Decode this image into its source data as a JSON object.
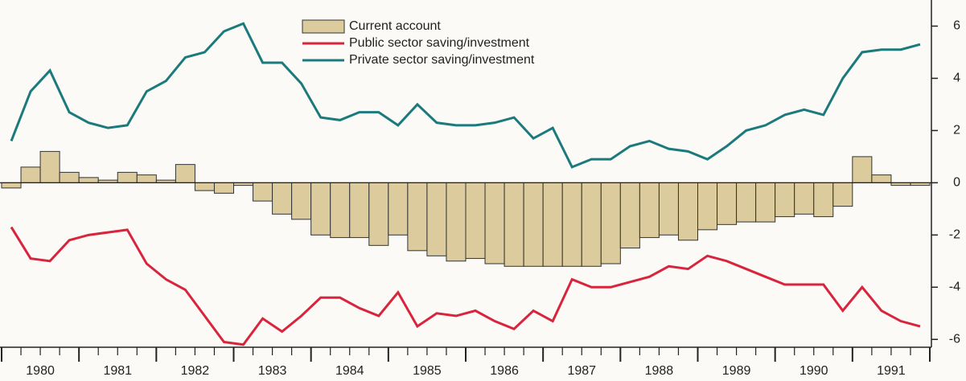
{
  "chart_data": {
    "type": "bar+line",
    "categories": [
      "1980",
      null,
      null,
      null,
      "1981",
      null,
      null,
      null,
      "1982",
      null,
      null,
      null,
      "1983",
      null,
      null,
      null,
      "1984",
      null,
      null,
      null,
      "1985",
      null,
      null,
      null,
      "1986",
      null,
      null,
      null,
      "1987",
      null,
      null,
      null,
      "1988",
      null,
      null,
      null,
      "1989",
      null,
      null,
      null,
      "1990",
      null,
      null,
      null,
      "1991",
      null,
      null,
      null
    ],
    "series": [
      {
        "name": "Current account",
        "type": "bar",
        "color": "#dccb9c",
        "values": [
          -0.2,
          0.6,
          1.2,
          0.4,
          0.2,
          0.1,
          0.4,
          0.3,
          0.1,
          0.7,
          -0.3,
          -0.4,
          -0.1,
          -0.7,
          -1.2,
          -1.4,
          -2.0,
          -2.1,
          -2.1,
          -2.4,
          -2.0,
          -2.6,
          -2.8,
          -3.0,
          -2.9,
          -3.1,
          -3.2,
          -3.2,
          -3.2,
          -3.2,
          -3.2,
          -3.1,
          -2.5,
          -2.1,
          -2.0,
          -2.2,
          -1.8,
          -1.6,
          -1.5,
          -1.5,
          -1.3,
          -1.2,
          -1.3,
          -0.9,
          1.0,
          0.3,
          -0.1,
          -0.1
        ]
      },
      {
        "name": "Public sector saving/investment",
        "type": "line",
        "color": "#d8243c",
        "values": [
          -1.7,
          -2.9,
          -3.0,
          -2.2,
          -2.0,
          -1.9,
          -1.8,
          -3.1,
          -3.7,
          -4.1,
          -5.1,
          -6.1,
          -6.2,
          -5.2,
          -5.7,
          -5.1,
          -4.4,
          -4.4,
          -4.8,
          -5.1,
          -4.2,
          -5.5,
          -5.0,
          -5.1,
          -4.9,
          -5.3,
          -5.6,
          -4.9,
          -5.3,
          -3.7,
          -4.0,
          -4.0,
          -3.8,
          -3.6,
          -3.2,
          -3.3,
          -2.8,
          -3.0,
          -3.3,
          -3.6,
          -3.9,
          -3.9,
          -3.9,
          -4.9,
          -4.0,
          -4.9,
          -5.3,
          -5.5
        ]
      },
      {
        "name": "Private sector saving/investment",
        "type": "line",
        "color": "#1b7a7c",
        "values": [
          1.6,
          3.5,
          4.3,
          2.7,
          2.3,
          2.1,
          2.2,
          3.5,
          3.9,
          4.8,
          5.0,
          5.8,
          6.1,
          4.6,
          4.6,
          3.8,
          2.5,
          2.4,
          2.7,
          2.7,
          2.2,
          3.0,
          2.3,
          2.2,
          2.2,
          2.3,
          2.5,
          1.7,
          2.1,
          0.6,
          0.9,
          0.9,
          1.4,
          1.6,
          1.3,
          1.2,
          0.9,
          1.4,
          2.0,
          2.2,
          2.6,
          2.8,
          2.6,
          4.0,
          5.0,
          5.1,
          5.1,
          5.3
        ]
      }
    ],
    "ylim": [
      -6.3,
      7
    ],
    "yticks": [
      6,
      4,
      2,
      0,
      -2,
      -4,
      -6
    ]
  }
}
